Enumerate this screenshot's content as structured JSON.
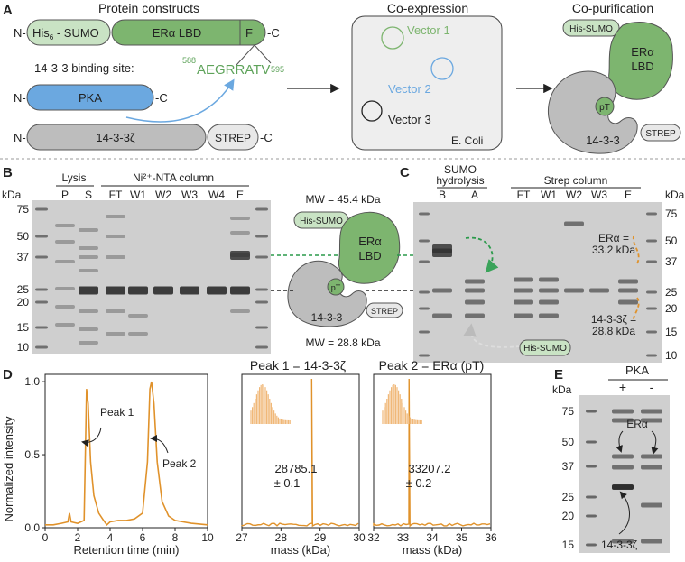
{
  "panel_letters": [
    "A",
    "B",
    "C",
    "D",
    "E"
  ],
  "panelA": {
    "section_titles": [
      "Protein constructs",
      "Co-expression",
      "Co-purification"
    ],
    "n_term": "N-",
    "c_term": "-C",
    "his_sumo": "His",
    "his_sub": "6",
    "his_rest": " - SUMO",
    "era_lbd": "ERα LBD",
    "f_label": "F",
    "binding_label": "14-3-3 binding site:",
    "binding_seq": "AEGRRATV",
    "seq_start": "588",
    "seq_end": "595",
    "pka": "PKA",
    "p1433": "14-3-3ζ",
    "strep": "STREP",
    "vector1": "Vector 1",
    "vector2": "Vector 2",
    "vector3": "Vector 3",
    "ecoli": "E. Coli",
    "copur_his": "His-SUMO",
    "copur_era": "ERα",
    "copur_lbd": "LBD",
    "copur_pt": "pT",
    "copur_1433": "14-3-3",
    "copur_strep": "STREP"
  },
  "panelB": {
    "kda": "kDa",
    "markers": [
      "75",
      "50",
      "37",
      "25",
      "20",
      "15",
      "10"
    ],
    "group_lysis": "Lysis",
    "group_ni": "Ni²⁺-NTA column",
    "lanes": [
      "P",
      "S",
      "FT",
      "W1",
      "W2",
      "W3",
      "W4",
      "E"
    ],
    "mw_top": "MW = 45.4 kDa",
    "mw_bottom": "MW = 28.8 kDa",
    "his_sumo": "His-SUMO",
    "era": "ERα",
    "lbd": "LBD",
    "pt": "pT",
    "p1433": "14-3-3",
    "strep": "STREP"
  },
  "panelC": {
    "group_sumo1": "SUMO",
    "group_sumo2": "hydrolysis",
    "group_strep": "Strep column",
    "lanes": [
      "B",
      "A",
      "FT",
      "W1",
      "W2",
      "W3",
      "E"
    ],
    "kda": "kDa",
    "markers": [
      "75",
      "50",
      "37",
      "25",
      "20",
      "15",
      "10"
    ],
    "era_label1": "ERα =",
    "era_label2": "33.2 kDa",
    "p1433_label1": "14-3-3ζ =",
    "p1433_label2": "28.8 kDa",
    "his_sumo": "His-SUMO"
  },
  "panelD": {
    "chrom": {
      "ylabel": "Normalized intensity",
      "xlabel": "Retention time (min)",
      "xticks": [
        "0",
        "2",
        "4",
        "6",
        "8",
        "10"
      ],
      "yticks": [
        "0.0",
        "0.5",
        "1.0"
      ],
      "peak1": "Peak 1",
      "peak2": "Peak 2"
    },
    "ms1": {
      "title": "Peak 1 = 14-3-3ζ",
      "xlabel": "mass (kDa)",
      "xticks": [
        "27",
        "28",
        "29",
        "30"
      ],
      "value": "28785.1",
      "err": "± 0.1"
    },
    "ms2": {
      "title": "Peak 2 = ERα (pT)",
      "xlabel": "mass (kDa)",
      "xticks": [
        "32",
        "33",
        "34",
        "35",
        "36"
      ],
      "value": "33207.2",
      "err": "± 0.2"
    }
  },
  "panelE": {
    "header": "PKA",
    "lanes": [
      "+",
      "-"
    ],
    "kda": "kDa",
    "markers": [
      "75",
      "50",
      "37",
      "25",
      "20",
      "15"
    ],
    "era": "ERα",
    "p1433": "14-3-3ζ"
  },
  "chart_data": [
    {
      "type": "line",
      "title": "",
      "xlabel": "Retention time (min)",
      "ylabel": "Normalized intensity",
      "xlim": [
        0,
        10
      ],
      "ylim": [
        0,
        1.05
      ],
      "series": [
        {
          "x": [
            0,
            0.5,
            1.0,
            1.4,
            1.5,
            1.6,
            2.0,
            2.4,
            2.55,
            2.65,
            2.8,
            3.0,
            3.3,
            3.6,
            3.8,
            4.0,
            4.5,
            5.0,
            5.5,
            6.0,
            6.3,
            6.45,
            6.55,
            6.7,
            6.9,
            7.2,
            7.6,
            8.0,
            8.5,
            9,
            10
          ],
          "values": [
            0.02,
            0.02,
            0.03,
            0.04,
            0.1,
            0.04,
            0.03,
            0.05,
            0.95,
            0.85,
            0.45,
            0.22,
            0.1,
            0.05,
            0.02,
            0.04,
            0.05,
            0.05,
            0.06,
            0.1,
            0.45,
            0.95,
            1.0,
            0.85,
            0.45,
            0.18,
            0.08,
            0.05,
            0.04,
            0.03,
            0.02
          ]
        }
      ]
    },
    {
      "type": "line",
      "title": "Peak 1 = 14-3-3ζ",
      "xlabel": "mass (kDa)",
      "xlim": [
        27,
        30
      ],
      "peak_mass": 28785.1
    },
    {
      "type": "line",
      "title": "Peak 2 = ERα (pT)",
      "xlabel": "mass (kDa)",
      "xlim": [
        32,
        36
      ],
      "peak_mass": 33207.2
    }
  ],
  "colors": {
    "green_light": "#c9e3c4",
    "green": "#7db56f",
    "green_text": "#5ea35a",
    "blue": "#6ba8e0",
    "gray": "#bdbdbd",
    "orange": "#e0922b"
  }
}
